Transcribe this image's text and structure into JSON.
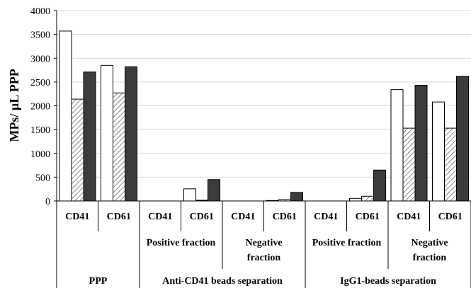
{
  "chart_data": {
    "type": "bar",
    "title": "",
    "xlabel": "",
    "ylabel": "MPs/ µL PPP",
    "ylim": [
      0,
      4000
    ],
    "yticks": [
      0,
      500,
      1000,
      1500,
      2000,
      2500,
      3000,
      3500,
      4000
    ],
    "grid": true,
    "categories": [
      "CD41",
      "CD61",
      "CD41",
      "CD61",
      "CD41",
      "CD61",
      "CD41",
      "CD61",
      "CD41",
      "CD61"
    ],
    "subgroups": [
      {
        "label": "",
        "span": [
          0,
          1
        ]
      },
      {
        "label": "Positive fraction",
        "span": [
          2,
          3
        ]
      },
      {
        "label": "Negative fraction",
        "lines": [
          "Negative",
          "fraction"
        ],
        "span": [
          4,
          5
        ]
      },
      {
        "label": "Positive fraction",
        "span": [
          6,
          7
        ]
      },
      {
        "label": "Negative fraction",
        "lines": [
          "Negative",
          "fraction"
        ],
        "span": [
          8,
          9
        ]
      }
    ],
    "groups": [
      {
        "label": "PPP",
        "span": [
          0,
          1
        ]
      },
      {
        "label": "Anti-CD41 beads separation",
        "span": [
          2,
          5
        ]
      },
      {
        "label": "IgG1-beads separation",
        "span": [
          6,
          9
        ]
      }
    ],
    "series": [
      {
        "fill": "#ffffff",
        "pattern": "none",
        "values": [
          3570,
          2850,
          0,
          255,
          0,
          10,
          0,
          55,
          2340,
          2080
        ]
      },
      {
        "fill": "#ffffff",
        "pattern": "hatched",
        "values": [
          2140,
          2270,
          0,
          15,
          0,
          30,
          0,
          100,
          1530,
          1530
        ]
      },
      {
        "fill": "#3c3c3c",
        "pattern": "none",
        "values": [
          2710,
          2820,
          0,
          450,
          0,
          180,
          0,
          650,
          2430,
          2620
        ]
      }
    ]
  }
}
